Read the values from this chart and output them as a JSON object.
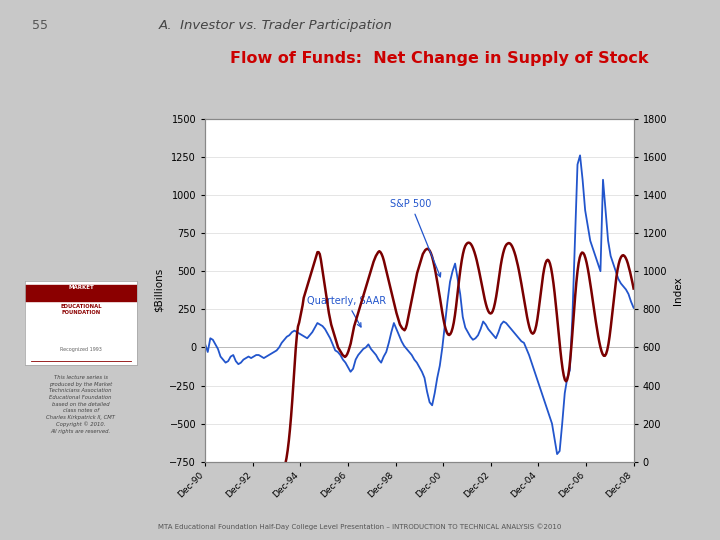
{
  "title_page": "55",
  "title_section": "A.  Investor vs. Trader Participation",
  "title_chart": "Flow of Funds:  Net Change in Supply of Stock",
  "title_chart_color": "#cc0000",
  "bg_color": "#c8c8c8",
  "plot_bg_color": "#ffffff",
  "ylabel_left": "$Billions",
  "ylabel_right": "Index",
  "ylim_left": [
    -750,
    1500
  ],
  "ylim_right": [
    0,
    1800
  ],
  "yticks_left": [
    -750,
    -500,
    -250,
    0,
    250,
    500,
    750,
    1000,
    1250,
    1500
  ],
  "yticks_right": [
    0,
    200,
    400,
    600,
    800,
    1000,
    1200,
    1400,
    1600,
    1800
  ],
  "annotation_blue": "Quarterly, SAAR",
  "annotation_red": "S&P 500",
  "blue_color": "#2255cc",
  "red_color": "#7a0000",
  "x_labels": [
    "Dec-90",
    "Dec-92",
    "Dec-94",
    "Dec-96",
    "Dec-98",
    "Dec-00",
    "Dec-02",
    "Dec-04",
    "Dec-06",
    "Dec-08"
  ],
  "footer": "MTA Educational Foundation Half-Day College Level Presentation – INTRODUCTION TO TECHNICAL ANALYSIS ©2010",
  "blue_data": [
    20,
    -30,
    60,
    50,
    20,
    -10,
    -60,
    -80,
    -100,
    -90,
    -60,
    -50,
    -90,
    -110,
    -100,
    -80,
    -70,
    -60,
    -70,
    -60,
    -50,
    -50,
    -60,
    -70,
    -60,
    -50,
    -40,
    -30,
    -20,
    0,
    30,
    50,
    70,
    80,
    100,
    110,
    100,
    90,
    80,
    70,
    60,
    80,
    100,
    130,
    160,
    150,
    140,
    120,
    90,
    60,
    20,
    -20,
    -30,
    -50,
    -80,
    -100,
    -130,
    -160,
    -140,
    -80,
    -50,
    -30,
    -10,
    0,
    20,
    -10,
    -30,
    -50,
    -80,
    -100,
    -60,
    -30,
    30,
    100,
    160,
    120,
    80,
    40,
    10,
    -10,
    -30,
    -50,
    -80,
    -100,
    -130,
    -160,
    -200,
    -290,
    -360,
    -380,
    -300,
    -200,
    -120,
    0,
    150,
    300,
    430,
    500,
    550,
    450,
    350,
    200,
    130,
    100,
    70,
    50,
    60,
    80,
    120,
    170,
    150,
    120,
    100,
    80,
    60,
    100,
    150,
    170,
    160,
    140,
    120,
    100,
    80,
    60,
    40,
    30,
    -10,
    -50,
    -100,
    -150,
    -200,
    -250,
    -300,
    -350,
    -400,
    -450,
    -500,
    -600,
    -700,
    -680,
    -500,
    -300,
    -200,
    -150,
    200,
    700,
    1200,
    1260,
    1100,
    900,
    800,
    700,
    650,
    600,
    550,
    500,
    1100,
    900,
    700,
    600,
    550,
    500,
    450,
    420,
    400,
    380,
    350,
    300,
    260
  ],
  "red_data": [
    -620,
    -630,
    -640,
    -650,
    -645,
    -635,
    -638,
    -645,
    -648,
    -640,
    -620,
    -600,
    -580,
    -570,
    -555,
    -540,
    -530,
    -520,
    -510,
    -500,
    -490,
    -480,
    -460,
    -440,
    -420,
    -400,
    -380,
    -360,
    -340,
    -320,
    -300,
    -285,
    -270,
    -255,
    -240,
    -230,
    -225,
    -220,
    -215,
    -210,
    -205,
    -200,
    -195,
    -190,
    -185,
    -180,
    -175,
    -170,
    -165,
    -160,
    -155,
    -150,
    -145,
    -140,
    -135,
    -130,
    -125,
    -120,
    -115,
    -110,
    -105,
    -100,
    -95,
    -90,
    -85,
    -80,
    -75,
    -65,
    -50,
    -30,
    -10,
    20,
    60,
    110,
    170,
    240,
    320,
    410,
    500,
    590,
    660,
    710,
    730,
    760,
    790,
    820,
    860,
    880,
    900,
    920,
    940,
    960,
    980,
    1000,
    1020,
    1040,
    1060,
    1080,
    1100,
    1100,
    1090,
    1060,
    1020,
    980,
    940,
    900,
    860,
    820,
    780,
    750,
    720,
    700,
    680,
    660,
    640,
    620,
    600,
    590,
    580,
    570,
    560,
    555,
    550,
    555,
    565,
    580,
    600,
    620,
    650,
    680,
    710,
    730,
    750,
    770,
    790,
    810,
    830,
    850,
    870,
    890,
    910,
    930,
    950,
    970,
    990,
    1010,
    1030,
    1050,
    1065,
    1080,
    1090,
    1100,
    1105,
    1100,
    1090,
    1075,
    1055,
    1030,
    1005,
    980,
    955,
    930,
    905,
    880,
    855,
    830,
    805,
    780,
    760,
    740,
    720,
    710,
    700,
    695,
    690,
    700,
    720,
    750,
    780,
    810,
    840,
    870,
    900,
    930,
    960,
    990,
    1010,
    1030,
    1050,
    1070,
    1090,
    1100,
    1110,
    1115,
    1118,
    1115,
    1108,
    1095,
    1078,
    1055,
    1028,
    998,
    965,
    930,
    895,
    858,
    820,
    782,
    748,
    718,
    695,
    678,
    668,
    665,
    670,
    682,
    702,
    730,
    768,
    814,
    865,
    920,
    972,
    1018,
    1058,
    1090,
    1115,
    1132,
    1142,
    1148,
    1150,
    1148,
    1142,
    1132,
    1118,
    1101,
    1081,
    1058,
    1032,
    1004,
    974,
    944,
    912,
    882,
    854,
    829,
    808,
    792,
    782,
    778,
    780,
    790,
    808,
    834,
    866,
    904,
    946,
    990,
    1030,
    1064,
    1092,
    1114,
    1130,
    1140,
    1145,
    1148,
    1146,
    1140,
    1130,
    1116,
    1099,
    1079,
    1055,
    1029,
    1000,
    968,
    935,
    900,
    864,
    828,
    793,
    760,
    731,
    706,
    687,
    676,
    672,
    677,
    691,
    715,
    749,
    792,
    840,
    890,
    938,
    980,
    1015,
    1040,
    1055,
    1060,
    1055,
    1040,
    1015,
    980,
    938,
    888,
    832,
    772,
    710,
    648,
    588,
    534,
    488,
    453,
    430,
    422,
    430,
    455,
    498,
    558,
    630,
    710,
    792,
    870,
    940,
    998,
    1042,
    1072,
    1090,
    1098,
    1096,
    1086,
    1068,
    1044,
    1014,
    980,
    942,
    902,
    860,
    818,
    776,
    736,
    698,
    662,
    630,
    602,
    580,
    564,
    556,
    556,
    566,
    586,
    616,
    656,
    704,
    758,
    815,
    871,
    924,
    970,
    1008,
    1038,
    1060,
    1074,
    1082,
    1084,
    1080,
    1071,
    1058,
    1040,
    1018,
    994,
    967,
    939,
    909
  ]
}
